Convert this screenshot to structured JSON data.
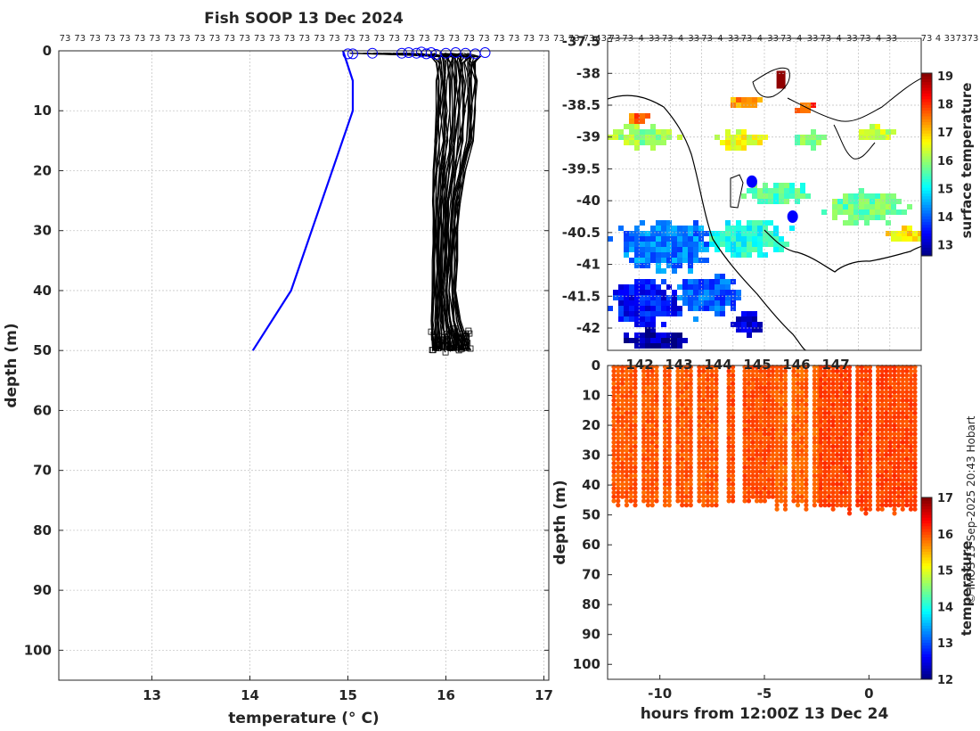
{
  "figure": {
    "title": "Fish SOOP 13 Dec 2024",
    "credit": "© IMOS 13-Sep-2025 20:43 Hobart"
  },
  "chart_data": [
    {
      "id": "profiles",
      "type": "line",
      "title": "Fish SOOP 13 Dec 2024",
      "xlabel": "temperature (° C)",
      "ylabel": "depth (m)",
      "xlim": [
        12.05,
        17.05
      ],
      "ylim": [
        105,
        0
      ],
      "xticks": [
        13,
        14,
        15,
        16,
        17
      ],
      "yticks": [
        0,
        10,
        20,
        30,
        40,
        50,
        60,
        70,
        80,
        90,
        100
      ],
      "top_labels": [
        "73",
        "73",
        "73",
        "73",
        "73",
        "73",
        "73",
        "73",
        "73",
        "73",
        "73",
        "73",
        "73",
        "73",
        "73",
        "73",
        "73",
        "73",
        "73",
        "73",
        "73",
        "73",
        "73",
        "73",
        "73",
        "73",
        "73",
        "73",
        "73",
        "73",
        "73",
        "73",
        "73",
        "73",
        "73",
        "73",
        "433"
      ],
      "climatology": {
        "name": "reference profile",
        "color": "#0000ff",
        "x": [
          14.95,
          15.05,
          15.05,
          14.42,
          14.03
        ],
        "y": [
          0,
          5,
          10,
          40,
          50
        ]
      },
      "profile_band": {
        "color": "#000000",
        "depth": [
          1,
          2,
          5,
          10,
          15,
          20,
          25,
          30,
          35,
          40,
          45,
          50
        ],
        "min": [
          15.85,
          15.9,
          15.9,
          15.9,
          15.88,
          15.87,
          15.86,
          15.86,
          15.86,
          15.86,
          15.85,
          15.85
        ],
        "max": [
          16.35,
          16.3,
          16.32,
          16.3,
          16.28,
          16.2,
          16.15,
          16.12,
          16.12,
          16.1,
          16.15,
          16.25
        ]
      },
      "surface_points": {
        "color": "#0000ff",
        "marker": "circle",
        "x": [
          15.0,
          15.05,
          15.25,
          15.55,
          15.62,
          15.7,
          15.75,
          15.8,
          15.85,
          15.9,
          16.0,
          16.1,
          16.2,
          16.3,
          16.4
        ],
        "y": [
          0.5,
          0.5,
          0.4,
          0.4,
          0.3,
          0.4,
          0.2,
          0.5,
          0.3,
          0.6,
          0.4,
          0.3,
          0.4,
          0.5,
          0.3
        ]
      }
    },
    {
      "id": "map",
      "type": "heatmap",
      "ylim": [
        -42.35,
        -37.45
      ],
      "yticks": [
        -37.5,
        -38,
        -38.5,
        -39,
        -39.5,
        -40,
        -40.5,
        -41,
        -41.5,
        -42
      ],
      "top_labels": [
        "73",
        "73",
        "4",
        "33",
        "73",
        "4",
        "33",
        "73",
        "4",
        "33",
        "73",
        "4",
        "33",
        "73",
        "4",
        "33",
        "73",
        "4",
        "33",
        "73",
        "4",
        "33"
      ],
      "top_labels_right": [
        "73",
        "4",
        "33",
        "73",
        "73"
      ],
      "colorbar": {
        "label": "surface temperature",
        "range": [
          12.6,
          19.1
        ],
        "ticks": [
          13,
          14,
          15,
          16,
          17,
          18,
          19
        ]
      },
      "stations": [
        {
          "lat": -39.7,
          "lon_frac": 0.46,
          "color": "#0000ff"
        },
        {
          "lat": -40.25,
          "lon_frac": 0.59,
          "color": "#0000ff"
        }
      ],
      "field_blobs": [
        {
          "cx": 0.12,
          "cy": -39.0,
          "rx": 0.13,
          "ry": 0.22,
          "v": 16.0
        },
        {
          "cx": 0.1,
          "cy": -38.7,
          "rx": 0.05,
          "ry": 0.08,
          "v": 17.6
        },
        {
          "cx": 0.42,
          "cy": -39.05,
          "rx": 0.1,
          "ry": 0.18,
          "v": 16.6
        },
        {
          "cx": 0.65,
          "cy": -39.05,
          "rx": 0.07,
          "ry": 0.15,
          "v": 15.8
        },
        {
          "cx": 0.86,
          "cy": -38.95,
          "rx": 0.08,
          "ry": 0.15,
          "v": 16.3
        },
        {
          "cx": 0.63,
          "cy": -38.55,
          "rx": 0.05,
          "ry": 0.1,
          "v": 17.8
        },
        {
          "cx": 0.44,
          "cy": -38.45,
          "rx": 0.06,
          "ry": 0.12,
          "v": 17.4
        },
        {
          "cx": 0.54,
          "cy": -39.9,
          "rx": 0.14,
          "ry": 0.22,
          "v": 15.5
        },
        {
          "cx": 0.82,
          "cy": -40.1,
          "rx": 0.17,
          "ry": 0.32,
          "v": 15.7
        },
        {
          "cx": 0.95,
          "cy": -40.55,
          "rx": 0.07,
          "ry": 0.18,
          "v": 16.8
        },
        {
          "cx": 0.45,
          "cy": -40.6,
          "rx": 0.18,
          "ry": 0.35,
          "v": 15.2
        },
        {
          "cx": 0.18,
          "cy": -40.7,
          "rx": 0.2,
          "ry": 0.5,
          "v": 14.2
        },
        {
          "cx": 0.12,
          "cy": -41.6,
          "rx": 0.14,
          "ry": 0.45,
          "v": 13.5
        },
        {
          "cx": 0.32,
          "cy": -41.5,
          "rx": 0.12,
          "ry": 0.45,
          "v": 14.0
        },
        {
          "cx": 0.15,
          "cy": -42.2,
          "rx": 0.15,
          "ry": 0.2,
          "v": 12.9
        },
        {
          "cx": 0.45,
          "cy": -41.9,
          "rx": 0.06,
          "ry": 0.25,
          "v": 13.1
        }
      ],
      "hot_spot": {
        "lat": -38.1,
        "lon_frac": 0.55,
        "v": 19.0
      }
    },
    {
      "id": "timeseries",
      "type": "scatter",
      "xlabel": "hours from 12:00Z 13 Dec 24",
      "ylabel": "depth (m)",
      "xlim": [
        -12.5,
        2.5
      ],
      "ylim": [
        105,
        0
      ],
      "xticks": [
        -10,
        -5,
        0
      ],
      "xtick_labels": [
        "-10",
        "-5",
        "0"
      ],
      "yticks": [
        0,
        10,
        20,
        30,
        40,
        50,
        60,
        70,
        80,
        90,
        100
      ],
      "top_labels": [
        "142",
        "143",
        "144",
        "145",
        "146",
        "147"
      ],
      "colorbar": {
        "label": "temperature",
        "range": [
          12,
          17
        ],
        "ticks": [
          12,
          13,
          14,
          15,
          16,
          17
        ]
      },
      "clusters": [
        {
          "t0": -12.2,
          "t1": -7.3,
          "max_depth": 48,
          "temp": 15.95
        },
        {
          "t0": -6.7,
          "t1": -4.6,
          "max_depth": 47,
          "temp": 16.0
        },
        {
          "t0": -4.4,
          "t1": -2.4,
          "max_depth": 49,
          "temp": 15.9
        },
        {
          "t0": -2.3,
          "t1": 2.2,
          "max_depth": 50,
          "temp": 16.05
        }
      ]
    }
  ]
}
